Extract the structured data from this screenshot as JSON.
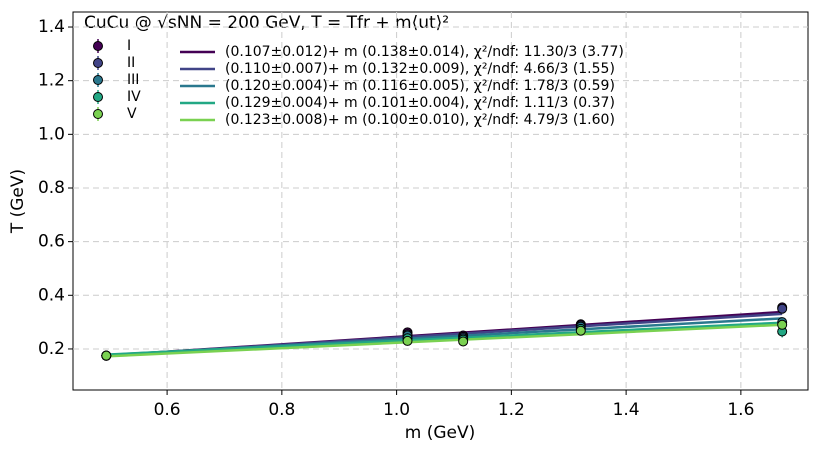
{
  "chart_data": {
    "type": "scatter",
    "title": "CuCu @ √sNN = 200 GeV, T = Tfr + m⟨ut⟩²",
    "x_label": "m (GeV)",
    "y_label": "T (GeV)",
    "x": [
      0.494,
      1.019,
      1.116,
      1.321,
      1.672
    ],
    "series": [
      {
        "name": "I",
        "color": "#440154",
        "values": [
          0.175,
          0.262,
          0.25,
          0.292,
          0.355
        ],
        "errors": [
          0.005,
          0.008,
          0.006,
          0.008,
          0.015
        ],
        "fit": {
          "intercept": 0.107,
          "slope": 0.138,
          "label": "(0.107±0.012)+ m (0.138±0.014),  χ²/ndf: 11.30/3 (3.77)"
        }
      },
      {
        "name": "II",
        "color": "#414487",
        "values": [
          0.175,
          0.255,
          0.245,
          0.288,
          0.35
        ],
        "errors": [
          0.005,
          0.007,
          0.006,
          0.008,
          0.012
        ],
        "fit": {
          "intercept": 0.11,
          "slope": 0.132,
          "label": "(0.110±0.007)+ m (0.132±0.009),  χ²/ndf: 4.66/3 (1.55)"
        }
      },
      {
        "name": "III",
        "color": "#2a788e",
        "values": [
          0.175,
          0.25,
          0.24,
          0.283,
          0.3
        ],
        "errors": [
          0.005,
          0.006,
          0.006,
          0.007,
          0.012
        ],
        "fit": {
          "intercept": 0.12,
          "slope": 0.116,
          "label": "(0.120±0.004)+ m (0.116±0.005),  χ²/ndf: 1.78/3 (0.59)"
        }
      },
      {
        "name": "IV",
        "color": "#22a884",
        "values": [
          0.175,
          0.24,
          0.235,
          0.275,
          0.265
        ],
        "errors": [
          0.005,
          0.006,
          0.006,
          0.007,
          0.022
        ],
        "fit": {
          "intercept": 0.129,
          "slope": 0.101,
          "label": "(0.129±0.004)+ m (0.101±0.004),  χ²/ndf: 1.11/3 (0.37)"
        }
      },
      {
        "name": "V",
        "color": "#7ad151",
        "values": [
          0.175,
          0.23,
          0.228,
          0.268,
          0.29
        ],
        "errors": [
          0.005,
          0.006,
          0.006,
          0.007,
          0.012
        ],
        "fit": {
          "intercept": 0.123,
          "slope": 0.1,
          "label": "(0.123±0.008)+ m (0.100±0.010),  χ²/ndf: 4.79/3 (1.60)"
        }
      }
    ],
    "xlim": [
      0.436,
      1.717
    ],
    "ylim": [
      0.047,
      1.456
    ],
    "xticks": [
      0.6,
      0.8,
      {
        "value": 1,
        "label": "1.0"
      },
      1.2,
      1.4,
      1.6
    ],
    "yticks": [
      0.2,
      0.4,
      0.6,
      0.8,
      {
        "value": 1,
        "label": "1.0"
      },
      1.2,
      1.4
    ],
    "grid": true
  }
}
